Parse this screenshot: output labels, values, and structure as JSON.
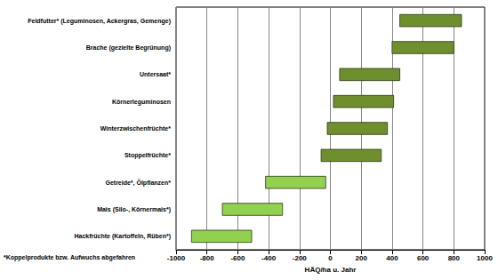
{
  "chart_data": {
    "type": "range_bar",
    "orientation": "horizontal",
    "categories": [
      "Feldfutter* (Leguminosen, Ackergras, Gemenge)",
      "Brache (gezielte Begrünung)",
      "Untersaat*",
      "Körnerleguminosen",
      "Winterzwischenfrüchte*",
      "Stoppelfrüchte*",
      "Getreide*, Ölpflanzen*",
      "Mais (Silo-, Körnermais*)",
      "Hackfrüchte (Kartoffeln, Rüben*)"
    ],
    "values": [
      [
        450,
        850
      ],
      [
        400,
        800
      ],
      [
        60,
        450
      ],
      [
        20,
        410
      ],
      [
        -20,
        370
      ],
      [
        -60,
        330
      ],
      [
        -420,
        -30
      ],
      [
        -700,
        -310
      ],
      [
        -900,
        -510
      ]
    ],
    "colors": [
      "#6f8f2f",
      "#6f8f2f",
      "#6f8f2f",
      "#6f8f2f",
      "#6f8f2f",
      "#6f8f2f",
      "#92d050",
      "#92d050",
      "#92d050"
    ],
    "xlabel": "HÄQ/ha u. Jahr",
    "xlim": [
      -1000,
      1000
    ],
    "xticks": [
      -1000,
      -800,
      -600,
      -400,
      -200,
      0,
      200,
      400,
      600,
      800,
      1000
    ],
    "grid": true,
    "annotations": [
      "*Koppelprodukte bzw. Aufwuchs abgefahren"
    ]
  }
}
